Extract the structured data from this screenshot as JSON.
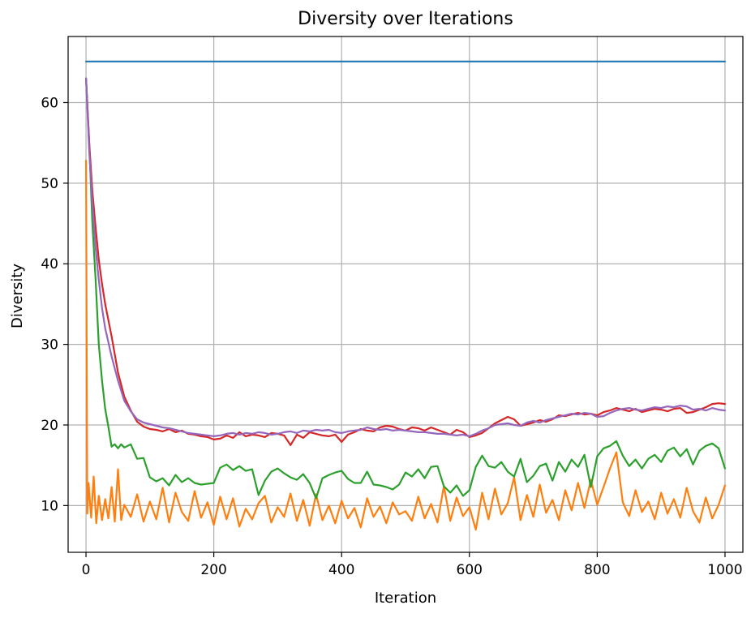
{
  "chart_data": {
    "type": "line",
    "title": "Diversity over Iterations",
    "xlabel": "Iteration",
    "ylabel": "Diversity",
    "xlim": [
      -28,
      1028
    ],
    "ylim": [
      4.2,
      68.2
    ],
    "xticks": [
      0,
      200,
      400,
      600,
      800,
      1000
    ],
    "yticks": [
      10,
      20,
      30,
      40,
      50,
      60
    ],
    "grid": true,
    "series": [
      {
        "color": "#1f77b4",
        "x": [
          0,
          100,
          200,
          300,
          400,
          500,
          600,
          700,
          800,
          900,
          1000
        ],
        "y": [
          65.1,
          65.1,
          65.1,
          65.1,
          65.1,
          65.1,
          65.1,
          65.1,
          65.1,
          65.1,
          65.1
        ]
      },
      {
        "color": "#ff7f0e",
        "x": [
          0,
          2,
          4,
          8,
          12,
          16,
          20,
          25,
          30,
          35,
          40,
          45,
          50,
          55,
          60,
          70,
          80,
          90,
          100,
          110,
          120,
          130,
          140,
          150,
          160,
          170,
          180,
          190,
          200,
          210,
          220,
          230,
          240,
          250,
          260,
          270,
          280,
          290,
          300,
          310,
          320,
          330,
          340,
          350,
          360,
          370,
          380,
          390,
          400,
          410,
          420,
          430,
          440,
          450,
          460,
          470,
          480,
          490,
          500,
          510,
          520,
          530,
          540,
          550,
          560,
          570,
          580,
          590,
          600,
          610,
          620,
          630,
          640,
          650,
          660,
          670,
          680,
          690,
          700,
          710,
          720,
          730,
          740,
          750,
          760,
          770,
          780,
          790,
          800,
          810,
          820,
          830,
          840,
          850,
          860,
          870,
          880,
          890,
          900,
          910,
          920,
          930,
          940,
          950,
          960,
          970,
          980,
          990,
          1000
        ],
        "y": [
          52.8,
          9.0,
          12.8,
          8.5,
          13.6,
          7.8,
          11.2,
          8.2,
          10.8,
          8.4,
          12.3,
          8.0,
          14.5,
          8.2,
          10.1,
          8.6,
          11.4,
          8.0,
          10.5,
          8.3,
          12.2,
          7.9,
          11.6,
          9.2,
          8.1,
          11.8,
          8.5,
          10.4,
          7.6,
          11.1,
          8.3,
          10.9,
          7.4,
          9.6,
          8.3,
          10.3,
          11.2,
          7.9,
          9.8,
          8.6,
          11.5,
          8.1,
          10.7,
          7.5,
          11.4,
          8.2,
          10.0,
          7.8,
          10.6,
          8.4,
          9.7,
          7.3,
          10.9,
          8.6,
          9.9,
          7.8,
          10.4,
          8.9,
          9.3,
          8.1,
          11.1,
          8.4,
          10.2,
          7.9,
          12.4,
          8.1,
          11.0,
          8.7,
          9.8,
          7.0,
          11.6,
          8.3,
          12.1,
          8.9,
          10.3,
          13.5,
          8.2,
          11.3,
          8.6,
          12.6,
          9.1,
          10.7,
          8.2,
          11.9,
          9.4,
          12.8,
          9.7,
          13.2,
          10.1,
          12.3,
          14.6,
          16.6,
          10.4,
          8.7,
          11.9,
          9.2,
          10.5,
          8.3,
          11.6,
          9.0,
          10.8,
          8.5,
          12.2,
          9.3,
          7.9,
          11.0,
          8.4,
          10.1,
          12.5
        ]
      },
      {
        "color": "#2ca02c",
        "x": [
          0,
          5,
          10,
          15,
          20,
          25,
          30,
          35,
          40,
          45,
          50,
          55,
          60,
          70,
          80,
          90,
          100,
          110,
          120,
          130,
          140,
          150,
          160,
          170,
          180,
          190,
          200,
          210,
          220,
          230,
          240,
          250,
          260,
          270,
          280,
          290,
          300,
          310,
          320,
          330,
          340,
          350,
          360,
          370,
          380,
          390,
          400,
          410,
          420,
          430,
          440,
          450,
          460,
          470,
          480,
          490,
          500,
          510,
          520,
          530,
          540,
          550,
          560,
          570,
          580,
          590,
          600,
          610,
          620,
          630,
          640,
          650,
          660,
          670,
          680,
          690,
          700,
          710,
          720,
          730,
          740,
          750,
          760,
          770,
          780,
          790,
          800,
          810,
          820,
          830,
          840,
          850,
          860,
          870,
          880,
          890,
          900,
          910,
          920,
          930,
          940,
          950,
          960,
          970,
          980,
          990,
          1000
        ],
        "y": [
          63.0,
          55.0,
          45.0,
          38.0,
          30.0,
          25.5,
          22.0,
          19.8,
          17.3,
          17.6,
          17.1,
          17.6,
          17.2,
          17.6,
          15.8,
          15.9,
          13.5,
          13.0,
          13.4,
          12.5,
          13.8,
          12.9,
          13.4,
          12.8,
          12.6,
          12.7,
          12.8,
          14.7,
          15.1,
          14.4,
          14.9,
          14.3,
          14.5,
          11.3,
          13.1,
          14.2,
          14.6,
          14.0,
          13.5,
          13.2,
          13.9,
          12.8,
          10.9,
          13.4,
          13.8,
          14.1,
          14.3,
          13.3,
          12.8,
          12.8,
          14.2,
          12.6,
          12.5,
          12.3,
          12.0,
          12.6,
          14.1,
          13.6,
          14.5,
          13.4,
          14.8,
          14.9,
          12.4,
          11.6,
          12.5,
          11.2,
          11.9,
          14.8,
          16.2,
          14.9,
          14.7,
          15.4,
          14.2,
          13.6,
          15.8,
          12.9,
          13.7,
          14.9,
          15.2,
          13.1,
          15.4,
          14.2,
          15.7,
          14.8,
          16.3,
          12.3,
          16.1,
          17.1,
          17.4,
          18.0,
          16.2,
          14.9,
          15.7,
          14.6,
          15.8,
          16.3,
          15.4,
          16.8,
          17.2,
          16.1,
          17.0,
          15.1,
          16.8,
          17.4,
          17.7,
          17.1,
          14.6
        ]
      },
      {
        "color": "#d62728",
        "x": [
          0,
          5,
          10,
          15,
          20,
          25,
          30,
          40,
          50,
          60,
          70,
          80,
          90,
          100,
          110,
          120,
          130,
          140,
          150,
          160,
          170,
          180,
          190,
          200,
          210,
          220,
          230,
          240,
          250,
          260,
          270,
          280,
          290,
          300,
          310,
          320,
          330,
          340,
          350,
          360,
          370,
          380,
          390,
          400,
          410,
          420,
          430,
          440,
          450,
          460,
          470,
          480,
          490,
          500,
          510,
          520,
          530,
          540,
          550,
          560,
          570,
          580,
          590,
          600,
          610,
          620,
          630,
          640,
          650,
          660,
          670,
          680,
          690,
          700,
          710,
          720,
          730,
          740,
          750,
          760,
          770,
          780,
          790,
          800,
          810,
          820,
          830,
          840,
          850,
          860,
          870,
          880,
          890,
          900,
          910,
          920,
          930,
          940,
          950,
          960,
          970,
          980,
          990,
          1000
        ],
        "y": [
          63.0,
          55.0,
          49.0,
          44.5,
          40.5,
          37.5,
          35.0,
          31.0,
          26.5,
          23.5,
          21.8,
          20.4,
          19.8,
          19.5,
          19.4,
          19.2,
          19.5,
          19.1,
          19.3,
          18.9,
          18.8,
          18.6,
          18.5,
          18.2,
          18.3,
          18.7,
          18.4,
          19.1,
          18.6,
          18.8,
          18.7,
          18.5,
          19.0,
          18.9,
          18.7,
          17.5,
          18.8,
          18.4,
          19.1,
          18.9,
          18.7,
          18.6,
          18.8,
          17.9,
          18.8,
          19.1,
          19.5,
          19.3,
          19.2,
          19.7,
          19.9,
          19.8,
          19.5,
          19.3,
          19.7,
          19.6,
          19.3,
          19.7,
          19.4,
          19.1,
          18.8,
          19.4,
          19.1,
          18.5,
          18.7,
          19.0,
          19.6,
          20.2,
          20.6,
          21.0,
          20.7,
          19.9,
          20.1,
          20.3,
          20.6,
          20.4,
          20.7,
          21.2,
          21.1,
          21.3,
          21.5,
          21.3,
          21.4,
          21.2,
          21.6,
          21.8,
          22.1,
          21.9,
          21.7,
          22.0,
          21.6,
          21.8,
          22.0,
          21.9,
          21.7,
          22.0,
          22.1,
          21.5,
          21.6,
          21.9,
          22.2,
          22.6,
          22.7,
          22.6
        ]
      },
      {
        "color": "#9467bd",
        "x": [
          0,
          5,
          10,
          15,
          20,
          25,
          30,
          40,
          50,
          60,
          70,
          80,
          90,
          100,
          110,
          120,
          130,
          140,
          150,
          160,
          170,
          180,
          190,
          200,
          210,
          220,
          230,
          240,
          250,
          260,
          270,
          280,
          290,
          300,
          310,
          320,
          330,
          340,
          350,
          360,
          370,
          380,
          390,
          400,
          410,
          420,
          430,
          440,
          450,
          460,
          470,
          480,
          490,
          500,
          510,
          520,
          530,
          540,
          550,
          560,
          570,
          580,
          590,
          600,
          610,
          620,
          630,
          640,
          650,
          660,
          670,
          680,
          690,
          700,
          710,
          720,
          730,
          740,
          750,
          760,
          770,
          780,
          790,
          800,
          810,
          820,
          830,
          840,
          850,
          860,
          870,
          880,
          890,
          900,
          910,
          920,
          930,
          940,
          950,
          960,
          970,
          980,
          990,
          1000
        ],
        "y": [
          63.0,
          54.0,
          47.5,
          42.0,
          38.0,
          34.5,
          32.0,
          28.5,
          25.5,
          23.0,
          21.7,
          20.7,
          20.3,
          20.1,
          19.9,
          19.7,
          19.6,
          19.4,
          19.2,
          19.0,
          18.9,
          18.8,
          18.7,
          18.6,
          18.7,
          18.9,
          19.0,
          18.8,
          19.0,
          18.9,
          19.1,
          19.0,
          18.8,
          18.9,
          19.1,
          19.2,
          19.0,
          19.3,
          19.2,
          19.4,
          19.3,
          19.4,
          19.1,
          19.0,
          19.2,
          19.3,
          19.4,
          19.7,
          19.5,
          19.4,
          19.5,
          19.3,
          19.4,
          19.3,
          19.2,
          19.1,
          19.1,
          19.0,
          18.9,
          18.9,
          18.8,
          18.7,
          18.8,
          18.6,
          18.9,
          19.3,
          19.6,
          20.0,
          20.1,
          20.2,
          20.0,
          19.9,
          20.3,
          20.5,
          20.3,
          20.6,
          20.8,
          21.0,
          21.2,
          21.4,
          21.3,
          21.5,
          21.4,
          21.0,
          21.1,
          21.5,
          21.8,
          22.0,
          22.1,
          21.9,
          21.8,
          22.0,
          22.2,
          22.1,
          22.3,
          22.2,
          22.4,
          22.3,
          21.9,
          22.0,
          21.8,
          22.1,
          21.9,
          21.8
        ]
      }
    ]
  }
}
